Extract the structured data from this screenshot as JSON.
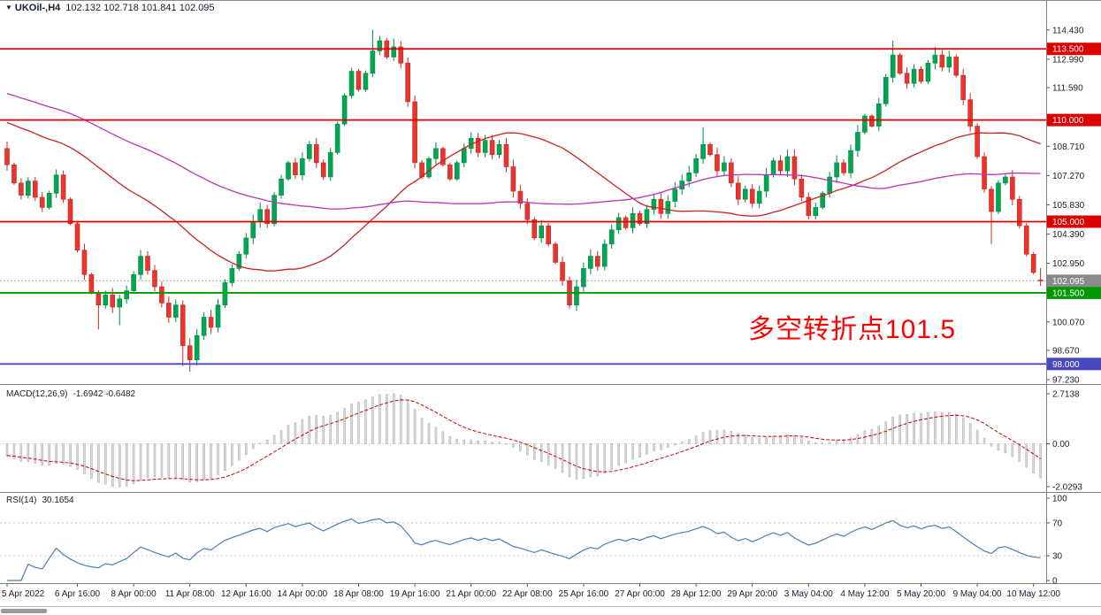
{
  "header": {
    "collapse_icon": "▼",
    "symbol_timeframe": "UKOil-,H4",
    "quote": "102.132 102.718 101.841 102.095"
  },
  "annotation": {
    "text": "多空转折点101.5",
    "color": "#ff0000"
  },
  "chart_data": {
    "type": "candlestick",
    "symbol": "UKOil-",
    "timeframe": "H4",
    "title": "UKOil- H4 candlestick chart with MACD and RSI",
    "price_range": [
      97.1,
      115.6
    ],
    "first_open": 108.6,
    "closes": [
      107.8,
      106.9,
      106.3,
      107.0,
      106.2,
      105.7,
      106.4,
      107.3,
      106.1,
      104.9,
      103.6,
      102.4,
      101.5,
      100.9,
      101.4,
      100.8,
      101.2,
      101.6,
      102.4,
      103.3,
      102.6,
      101.8,
      101.0,
      100.3,
      100.9,
      98.9,
      98.2,
      99.4,
      100.3,
      99.8,
      100.9,
      102.0,
      102.7,
      103.4,
      104.2,
      105.0,
      105.6,
      104.9,
      106.3,
      107.1,
      107.9,
      107.3,
      108.1,
      108.8,
      107.9,
      107.2,
      108.4,
      109.8,
      111.2,
      112.4,
      111.5,
      112.3,
      113.4,
      113.9,
      113.1,
      113.6,
      112.8,
      110.9,
      107.9,
      107.2,
      108.1,
      108.6,
      107.8,
      107.1,
      107.9,
      108.6,
      109.1,
      108.4,
      109.0,
      108.3,
      108.8,
      107.7,
      106.5,
      105.9,
      105.1,
      104.2,
      104.8,
      103.9,
      103.0,
      102.1,
      100.9,
      101.8,
      102.7,
      103.3,
      102.8,
      103.9,
      104.6,
      105.2,
      104.7,
      105.4,
      104.9,
      105.6,
      106.1,
      105.4,
      106.0,
      106.6,
      107.0,
      107.4,
      108.1,
      108.8,
      108.3,
      107.5,
      107.9,
      106.9,
      106.1,
      106.6,
      105.9,
      106.5,
      107.3,
      108.0,
      107.5,
      108.2,
      107.1,
      106.2,
      105.3,
      105.7,
      106.4,
      107.2,
      107.9,
      107.4,
      108.5,
      109.4,
      110.2,
      109.7,
      110.8,
      112.1,
      113.2,
      112.3,
      111.8,
      112.5,
      111.9,
      112.8,
      113.2,
      112.6,
      113.1,
      112.2,
      111.0,
      109.7,
      108.2,
      106.6,
      105.5,
      106.9,
      107.2,
      106.1,
      104.8,
      103.4,
      102.5,
      102.095
    ],
    "bar_overrides": [
      {
        "i": 13,
        "low": 99.7
      },
      {
        "i": 16,
        "low": 99.9
      },
      {
        "i": 25,
        "low": 97.9
      },
      {
        "i": 26,
        "low": 97.62
      },
      {
        "i": 52,
        "high": 114.43
      },
      {
        "i": 55,
        "high": 114.0
      },
      {
        "i": 99,
        "high": 109.65
      },
      {
        "i": 126,
        "high": 113.9
      },
      {
        "i": 132,
        "high": 113.6
      },
      {
        "i": 140,
        "low": 103.9
      },
      {
        "i": 147,
        "open": 102.132,
        "high": 102.718,
        "low": 101.841
      }
    ],
    "last_bar": {
      "open": 102.132,
      "high": 102.718,
      "low": 101.841,
      "close": 102.095
    },
    "moving_averages": [
      {
        "name": "ma-fast",
        "period": 34,
        "color": "#cc2222"
      },
      {
        "name": "ma-slow",
        "period": 68,
        "color": "#bb33bb"
      }
    ],
    "prehistory": {
      "bars": 68,
      "start": 114.2
    },
    "levels": [
      {
        "price": 113.5,
        "label": "113.500",
        "color": "#dd0000"
      },
      {
        "price": 110.0,
        "label": "110.000",
        "color": "#dd0000"
      },
      {
        "price": 105.0,
        "label": "105.000",
        "color": "#dd0000"
      },
      {
        "price": 101.5,
        "label": "101.500",
        "color": "#009900"
      },
      {
        "price": 98.0,
        "label": "98.000",
        "color": "#4848c0"
      }
    ],
    "current_price": {
      "value": 102.095,
      "label": "102.095",
      "badge_color": "#8a8a8a"
    },
    "price_axis_labels": [
      {
        "value": 114.43,
        "text": "114.430"
      },
      {
        "value": 112.99,
        "text": "112.990"
      },
      {
        "value": 111.59,
        "text": "111.590"
      },
      {
        "value": 108.71,
        "text": "108.710"
      },
      {
        "value": 107.27,
        "text": "107.270"
      },
      {
        "value": 105.83,
        "text": "105.830"
      },
      {
        "value": 104.39,
        "text": "104.390"
      },
      {
        "value": 102.95,
        "text": "102.950"
      },
      {
        "value": 100.07,
        "text": "100.070"
      },
      {
        "value": 98.67,
        "text": "98.670"
      },
      {
        "value": 97.23,
        "text": "97.230"
      }
    ],
    "time_axis": {
      "labels": [
        "5 Apr 2022",
        "6 Apr 16:00",
        "8 Apr 00:00",
        "11 Apr 08:00",
        "12 Apr 16:00",
        "14 Apr 00:00",
        "18 Apr 08:00",
        "19 Apr 16:00",
        "21 Apr 00:00",
        "22 Apr 08:00",
        "25 Apr 16:00",
        "27 Apr 00:00",
        "28 Apr 12:00",
        "29 Apr 20:00",
        "3 May 04:00",
        "4 May 12:00",
        "5 May 20:00",
        "9 May 04:00",
        "10 May 12:00"
      ],
      "bar_positions": [
        0,
        10,
        18,
        26,
        34,
        42,
        50,
        58,
        66,
        74,
        82,
        90,
        98,
        106,
        114,
        122,
        130,
        138,
        146
      ]
    },
    "indicators": {
      "macd": {
        "label": "MACD(12,26,9)",
        "values_text": "-1.6942 -0.6482",
        "fast": 12,
        "slow": 26,
        "signal": 9,
        "axis_labels": {
          "max": "2.7138",
          "zero": "0.00",
          "min": "-2.0293"
        },
        "histogram_color": "#dcdcdc",
        "histogram_stroke": "#a6a6a6",
        "signal_color": "#cc0000"
      },
      "rsi": {
        "label": "RSI(14)",
        "value_text": "30.1654",
        "period": 14,
        "color": "#4a7ebb",
        "levels": [
          70,
          30
        ],
        "axis_labels": [
          {
            "value": 100,
            "text": "100"
          },
          {
            "value": 70,
            "text": "70"
          },
          {
            "value": 30,
            "text": "30"
          },
          {
            "value": 0,
            "text": "0"
          }
        ]
      }
    },
    "colors": {
      "up": "#00a651",
      "up_stroke": "#00env8a43",
      "down": "#e8352e",
      "down_stroke": "#c52b24",
      "background": "#ffffff",
      "axis_text": "#15202b",
      "separator": "#808080"
    }
  }
}
